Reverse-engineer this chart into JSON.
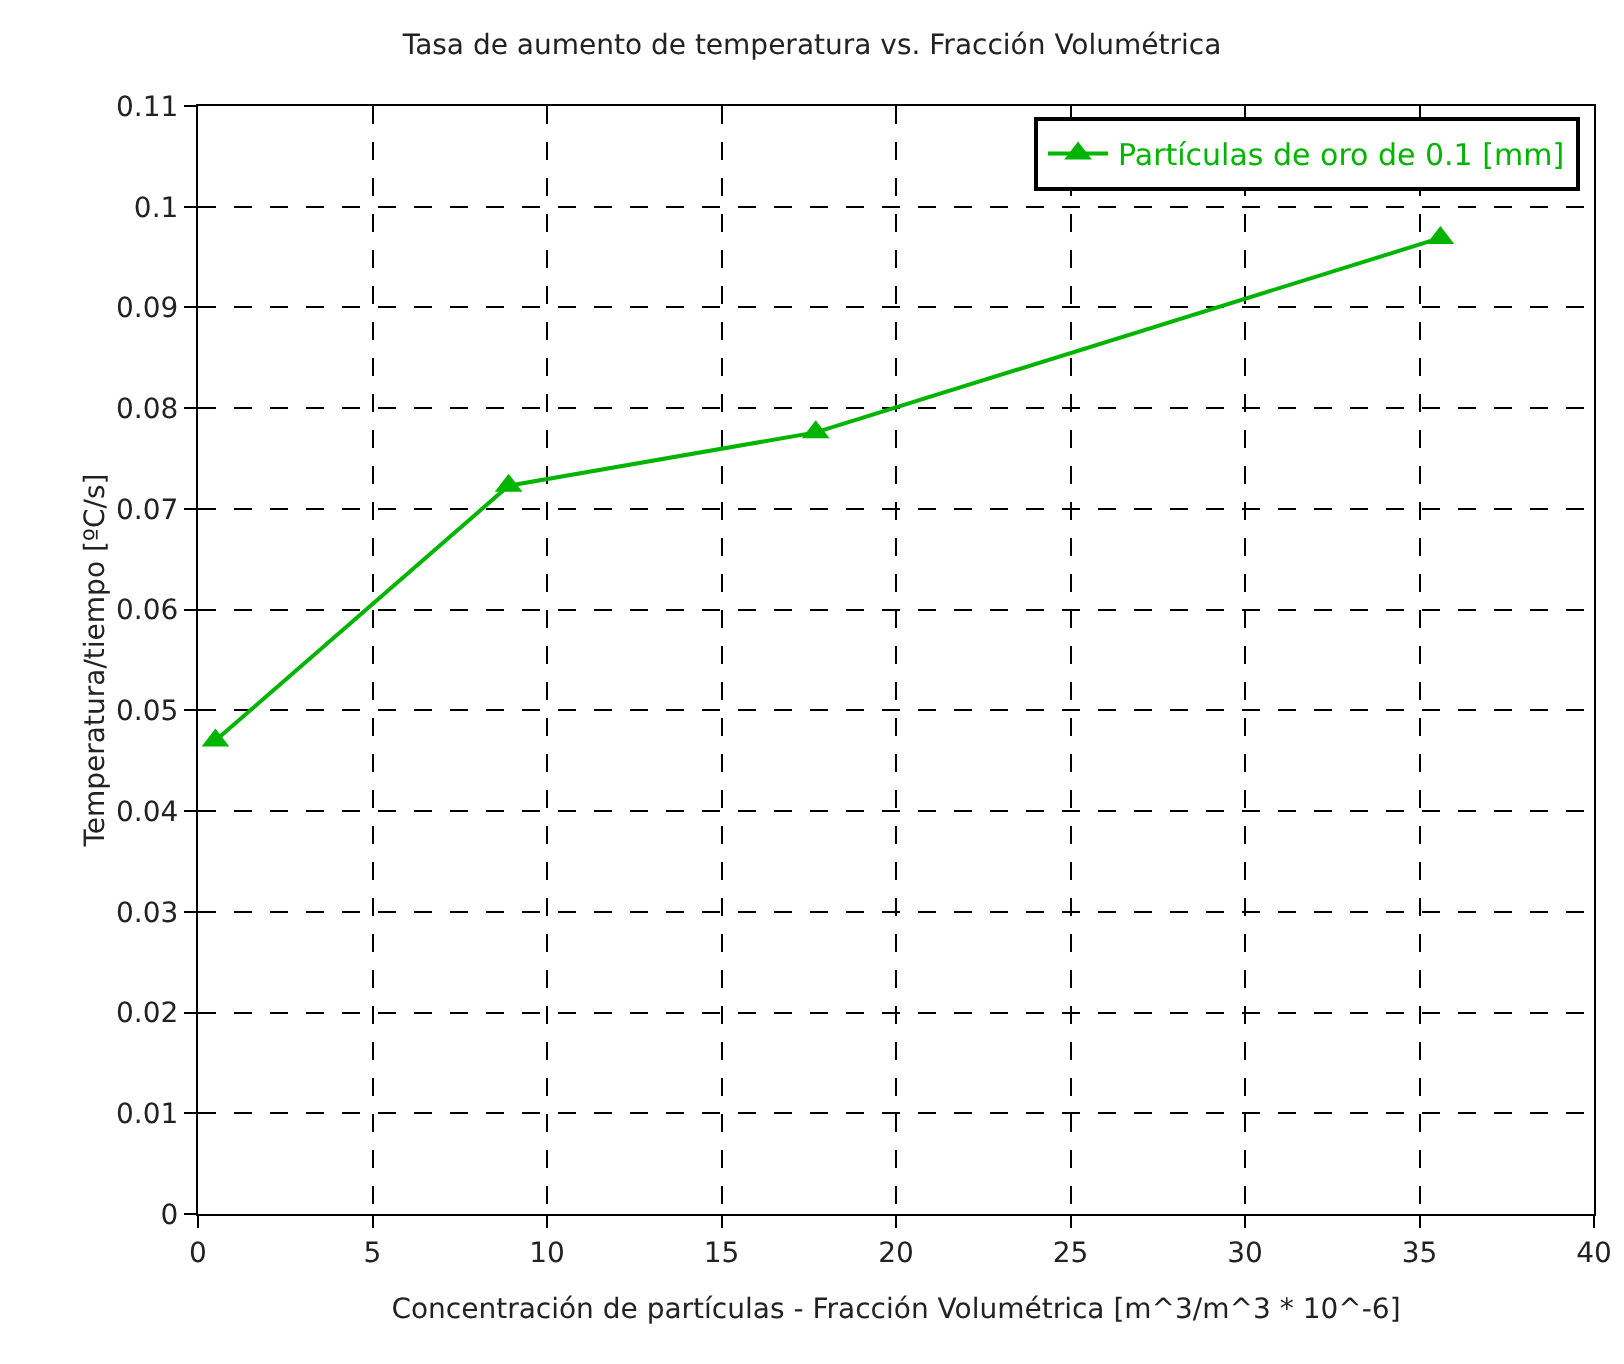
{
  "chart_data": {
    "type": "line",
    "title": "Tasa de aumento de temperatura vs. Fracción Volumétrica",
    "xlabel": "Concentración de partículas - Fracción Volumétrica [m^3/m^3 * 10^-6]",
    "ylabel": "Temperatura/tiempo [ºC/s]",
    "x": [
      0.5,
      8.9,
      17.7,
      35.6
    ],
    "series": [
      {
        "name": "Partículas de oro de 0.1 [mm]",
        "color": "#00b400",
        "values": [
          0.047,
          0.0723,
          0.0776,
          0.0969
        ]
      }
    ],
    "xlim": [
      0,
      40
    ],
    "xticks": [
      0,
      5,
      10,
      15,
      20,
      25,
      30,
      35,
      40
    ],
    "ylim": [
      0,
      0.11
    ],
    "yticks": [
      0,
      0.01,
      0.02,
      0.03,
      0.04,
      0.05,
      0.06,
      0.07,
      0.08,
      0.09,
      0.1,
      0.11
    ],
    "grid": true,
    "legend": "top right",
    "marker": "triangle",
    "line_style": "solid"
  }
}
